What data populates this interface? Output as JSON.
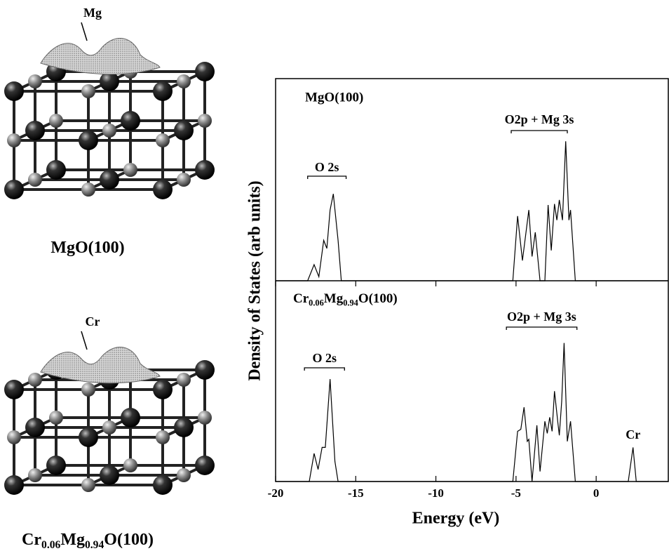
{
  "chart_data": [
    {
      "type": "line",
      "title": "MgO(100)",
      "x": [
        -20,
        -18,
        -17.6,
        -17.3,
        -17.0,
        -16.8,
        -16.6,
        -16.4,
        -16.1,
        -15.9,
        -5.2,
        -4.9,
        -4.6,
        -4.2,
        -4.0,
        -3.8,
        -3.5,
        -3.2,
        -3.0,
        -2.8,
        -2.6,
        -2.45,
        -2.3,
        -2.1,
        -1.9,
        -1.7,
        -1.6,
        -1.3,
        4.5
      ],
      "values": [
        0,
        0,
        0.8,
        0.2,
        2.0,
        1.6,
        3.5,
        4.3,
        2.0,
        0,
        0,
        3.2,
        1.0,
        3.5,
        1.2,
        2.4,
        0,
        0,
        3.75,
        1.5,
        3.8,
        3.0,
        4.0,
        3.0,
        6.9,
        3.0,
        3.5,
        0,
        0
      ],
      "color": "#000000",
      "xlim": [
        -20,
        4.5
      ],
      "ylim": [
        0,
        10
      ],
      "annotations": [
        "O 2s",
        "O2p + Mg 3s"
      ]
    },
    {
      "type": "line",
      "title_parts": [
        "Cr",
        "0.06",
        "Mg",
        "0.94",
        "O(100)"
      ],
      "x": [
        -20,
        -17.9,
        -17.6,
        -17.35,
        -17.1,
        -16.9,
        -16.6,
        -16.3,
        -16.1,
        -5.2,
        -4.9,
        -4.7,
        -4.5,
        -4.3,
        -4.2,
        -4.0,
        -3.7,
        -3.5,
        -3.2,
        -3.05,
        -2.9,
        -2.75,
        -2.6,
        -2.4,
        -2.3,
        -2.15,
        -2.0,
        -1.8,
        -1.6,
        -1.3,
        2.0,
        2.3,
        2.5,
        4.5
      ],
      "values": [
        0,
        0,
        1.4,
        0.6,
        1.7,
        1.7,
        5.1,
        1.0,
        0,
        0,
        2.5,
        2.6,
        3.7,
        2.0,
        2.1,
        0,
        2.8,
        0.5,
        3.0,
        2.4,
        3.2,
        2.5,
        4.5,
        3.0,
        2.3,
        4.0,
        6.9,
        2.0,
        3.0,
        0,
        0,
        1.7,
        0,
        0
      ],
      "color": "#000000",
      "xlim": [
        -20,
        4.5
      ],
      "ylim": [
        0,
        10
      ],
      "xticks": [
        -20,
        -15,
        -10,
        -5,
        0
      ],
      "xlabel": "Energy  (eV)",
      "ylabel": "Density  of  States  (arb units)",
      "annotations": [
        "O 2s",
        "O2p + Mg 3s",
        "Cr"
      ]
    }
  ],
  "structures": [
    {
      "atom_label": "Mg",
      "caption_parts": [
        "MgO(100)"
      ]
    },
    {
      "atom_label": "Cr",
      "caption_parts": [
        "Cr",
        "0.06",
        "Mg",
        "0.94",
        "O(100)"
      ]
    }
  ]
}
